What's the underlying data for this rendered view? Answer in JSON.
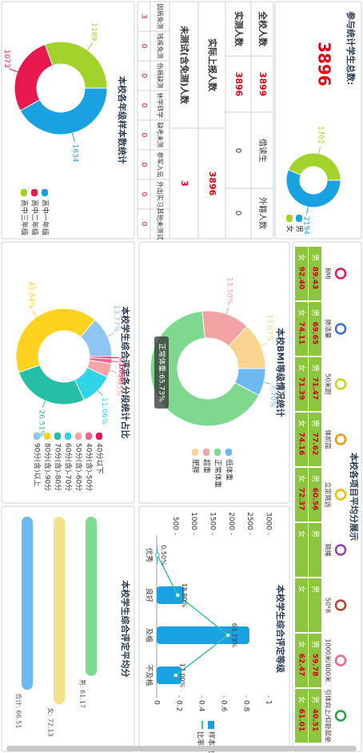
{
  "summary": {
    "title": "参与统计学生总数:",
    "total": 3896
  },
  "stats_table": {
    "rows": [
      [
        "全校人数",
        "3899",
        "借读生",
        "外籍人数"
      ],
      [
        "实测人数",
        "3896",
        "0",
        "0"
      ],
      [
        "实际上报人数",
        "3896"
      ],
      [
        "未测试(含免测)人数",
        "3"
      ]
    ],
    "reasons": [
      "因病免测",
      "残疾免测",
      "伤病缺测",
      "休学转学",
      "缺考未测",
      "参军入伍",
      "外出实习",
      "其他未测试"
    ],
    "reason_counts": [
      "3",
      "0",
      "0",
      "0",
      "0",
      "0",
      "0",
      "0"
    ]
  },
  "score_table": {
    "title": "本校各项目平均分展示",
    "sexes": [
      "男",
      "女"
    ],
    "items": [
      {
        "name": "BMI",
        "scores": [
          "89.43",
          "92.40"
        ]
      },
      {
        "name": "肺活量",
        "scores": [
          "69.65",
          "74.11"
        ]
      },
      {
        "name": "50米跑",
        "scores": [
          "71.47",
          "71.39"
        ]
      },
      {
        "name": "体前屈",
        "scores": [
          "77.62",
          "74.16"
        ]
      },
      {
        "name": "立定跳远",
        "scores": [
          "60.56",
          "72.37"
        ]
      },
      {
        "name": "跳绳"
      },
      {
        "name": "50*8"
      },
      {
        "name": "1000米/800米",
        "scores": [
          "59.78",
          "62.47"
        ]
      },
      {
        "name": "引体向上/仰卧起坐",
        "scores": [
          "40.51",
          "61.01"
        ]
      }
    ]
  },
  "chart_data": [
    {
      "type": "pie",
      "categories": [
        "男",
        "女"
      ],
      "values": [
        2194,
        1702
      ],
      "colors": [
        "#1aa1e0",
        "#a3d32b"
      ]
    },
    {
      "type": "pie",
      "title": "本校各年级样本数统计",
      "categories": [
        "高中一年级",
        "高中二年级",
        "高中三年级"
      ],
      "values": [
        1634,
        1073,
        1189
      ],
      "colors": [
        "#1aa1e0",
        "#e8194f",
        "#a3d32b"
      ]
    },
    {
      "type": "pie",
      "title": "本校BMI等级情况统计",
      "categories": [
        "低体重",
        "正常体重",
        "超重",
        "肥胖"
      ],
      "values": [
        7.7,
        65.73,
        13.5,
        13.07
      ],
      "value_labels": [
        "7.70%",
        null,
        "13.50%",
        "13.07%"
      ],
      "tooltip": "正常体重:65.73%",
      "colors": [
        "#6cb8f0",
        "#7ed98e",
        "#f4a3a3",
        "#f8d48e"
      ]
    },
    {
      "type": "bar_line",
      "title": "本校学生综合评定等级",
      "categories": [
        "优秀",
        "良好",
        "及格",
        "不及格"
      ],
      "series": [
        {
          "name": "样本数",
          "color": "#1aa1e0",
          "values": [
            19,
            733,
            2483,
            661
          ]
        },
        {
          "name": "比率",
          "color": "#39c0b0",
          "axis": "y2",
          "values": [
            0.005,
            0.188,
            0.6373,
            0.17
          ],
          "value_labels": [
            "0.50%",
            "18.80%",
            "63.73%",
            "17.00%"
          ]
        }
      ],
      "ylim": [
        0,
        3000
      ],
      "yticks": [
        500,
        1000,
        1500,
        2000,
        2500,
        3000
      ],
      "y2lim": [
        0,
        1
      ],
      "y2ticks": [
        0,
        0.2,
        0.4,
        0.6,
        0.8,
        1
      ]
    },
    {
      "type": "pie",
      "title": "本校学生综合评定各分段统计占比",
      "categories": [
        "40分以下",
        "40分(含)-50分",
        "50分(含)-60分",
        "60分(含)-70分",
        "70分(含)-80分",
        "80分(含)-90分",
        "90分(含)以上"
      ],
      "values": [
        0.8,
        1.59,
        4.65,
        11.06,
        26.51,
        41.64,
        13.77
      ],
      "value_labels": [
        "0.80%",
        "1.59%",
        "4.65%",
        "11.06%",
        "26.51%",
        "41.64%",
        "13.77%"
      ],
      "colors": [
        "#e8194f",
        "#f06292",
        "#f8a5a5",
        "#2fd4e8",
        "#26bfa6",
        "#ffd21f",
        "#8ec5f2"
      ]
    },
    {
      "type": "hbar",
      "title": "本校学生综合评定平均分",
      "values": [
        61.17,
        72.13,
        66.51
      ],
      "value_labels": [
        "男: 61.17",
        "女: 72.13",
        "合计: 66.51"
      ],
      "colors": [
        "#7ddc8e",
        "#f8e08a",
        "#6cb8f0"
      ],
      "xlim": [
        0,
        80
      ]
    }
  ]
}
